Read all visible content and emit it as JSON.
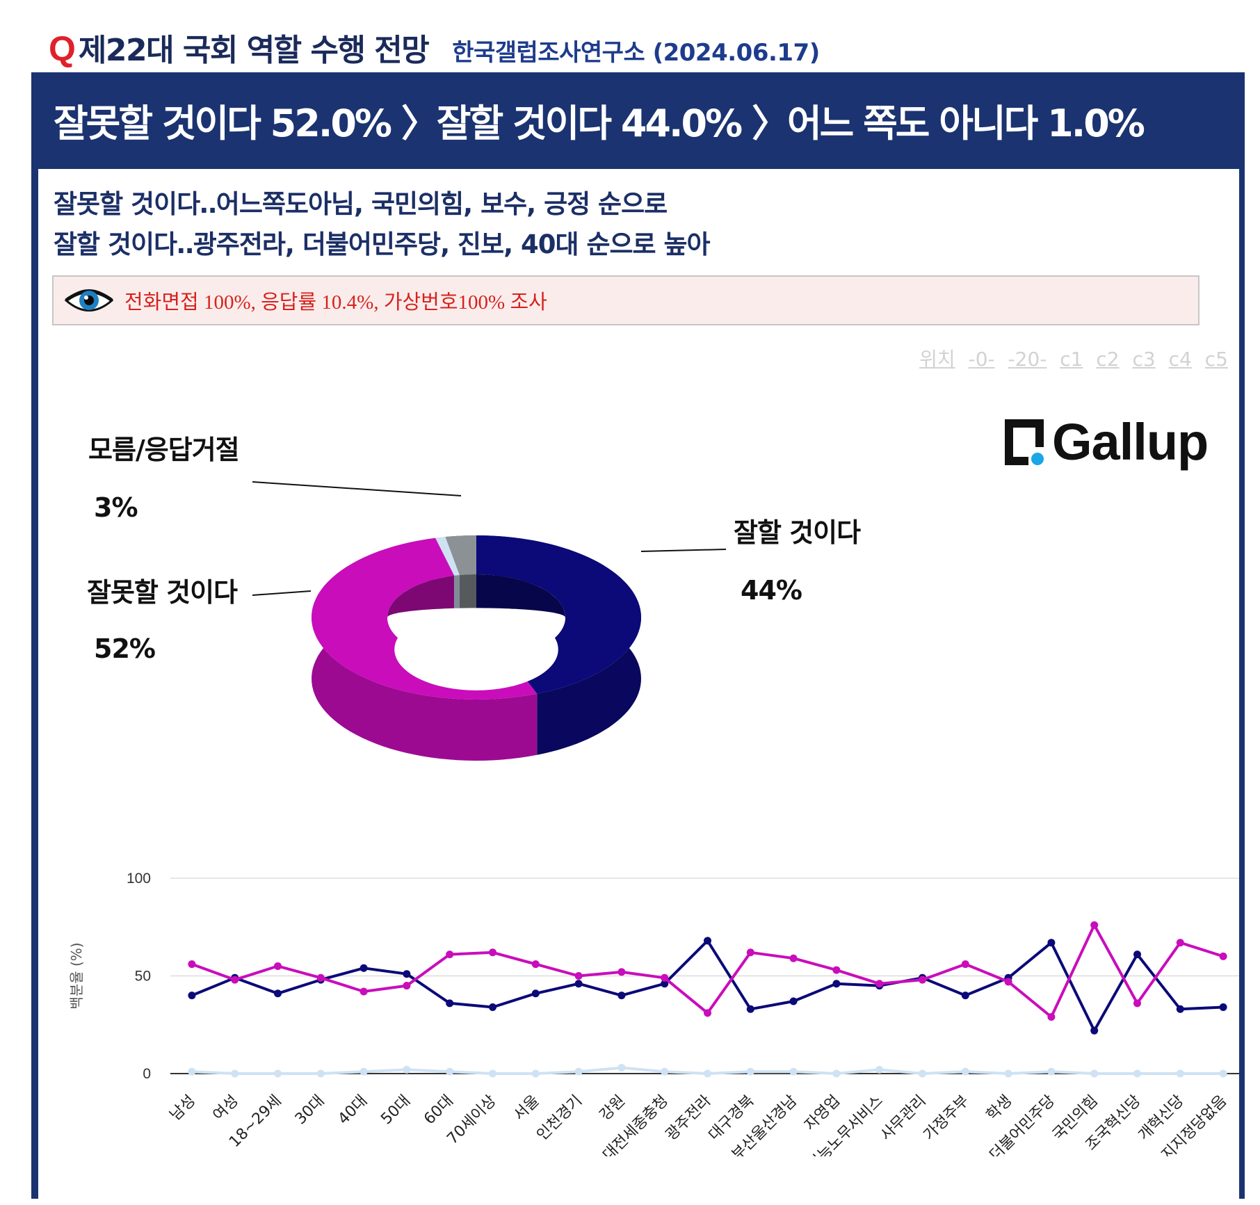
{
  "header": {
    "q_mark": "Q",
    "title": "제22대 국회 역할 수행 전망",
    "source": "한국갤럽조사연구소 (2024.06.17)"
  },
  "banner": {
    "text": "잘못할 것이다 52.0% 〉잘할 것이다 44.0% 〉어느 쪽도 아니다 1.0%"
  },
  "subhead": {
    "line1": "잘못할 것이다‥어느쪽도아님, 국민의힘, 보수, 긍정 순으로",
    "line2": "잘할 것이다‥광주전라, 더불어민주당, 진보, 40대 순으로 높아"
  },
  "notice": {
    "icon": "eye-icon",
    "text": "전화면접 100%, 응답률 10.4%, 가상번호100% 조사"
  },
  "position_links": [
    "위치",
    "-0-",
    "-20-",
    "c1",
    "c2",
    "c3",
    "c4",
    "c5"
  ],
  "logo": {
    "text": "Gallup"
  },
  "colors": {
    "navy": "#1b3370",
    "good": "#0b0a78",
    "bad": "#c90dbb",
    "unknown": "#8c9196",
    "neither": "#cfe2f3",
    "title_red": "#e0202a",
    "notice_red": "#d6221c"
  },
  "chart_data": [
    {
      "type": "pie",
      "style": "3d-donut",
      "slices": [
        {
          "label": "잘할 것이다",
          "value": 44,
          "display": "44%",
          "color": "#0b0a78"
        },
        {
          "label": "잘못할 것이다",
          "value": 52,
          "display": "52%",
          "color": "#c90dbb"
        },
        {
          "label": "",
          "value": 1,
          "display": "",
          "color": "#cfe2f3"
        },
        {
          "label": "모름/응답거절",
          "value": 3,
          "display": "3%",
          "color": "#8c9196"
        }
      ]
    },
    {
      "type": "line",
      "ylabel": "백분율 (%)",
      "ylim": [
        0,
        100
      ],
      "yticks": [
        0,
        50,
        100
      ],
      "grid": true,
      "categories": [
        "남성",
        "여성",
        "18~29세",
        "30대",
        "40대",
        "50대",
        "60대",
        "70세이상",
        "서울",
        "인천경기",
        "강원",
        "대전세종충청",
        "광주전라",
        "대구경북",
        "부산울산경남",
        "자영업",
        "기능노무서비스",
        "사무관리",
        "가정주부",
        "학생",
        "더불어민주당",
        "국민의힘",
        "조국혁신당",
        "개혁신당",
        "지지정당없음"
      ],
      "series": [
        {
          "color": "#0b0a78",
          "values": [
            40,
            49,
            41,
            48,
            54,
            51,
            36,
            34,
            41,
            46,
            40,
            46,
            68,
            33,
            37,
            46,
            45,
            49,
            40,
            49,
            67,
            22,
            61,
            33,
            34
          ]
        },
        {
          "color": "#c90dbb",
          "values": [
            56,
            48,
            55,
            49,
            42,
            45,
            61,
            62,
            56,
            50,
            52,
            49,
            31,
            62,
            59,
            53,
            46,
            48,
            56,
            47,
            29,
            76,
            36,
            67,
            60
          ]
        },
        {
          "color": "#cfe2f3",
          "values": [
            1,
            0,
            0,
            0,
            1,
            2,
            1,
            0,
            0,
            1,
            3,
            1,
            0,
            1,
            1,
            0,
            2,
            0,
            1,
            0,
            1,
            0,
            0,
            0,
            0
          ]
        }
      ]
    }
  ]
}
